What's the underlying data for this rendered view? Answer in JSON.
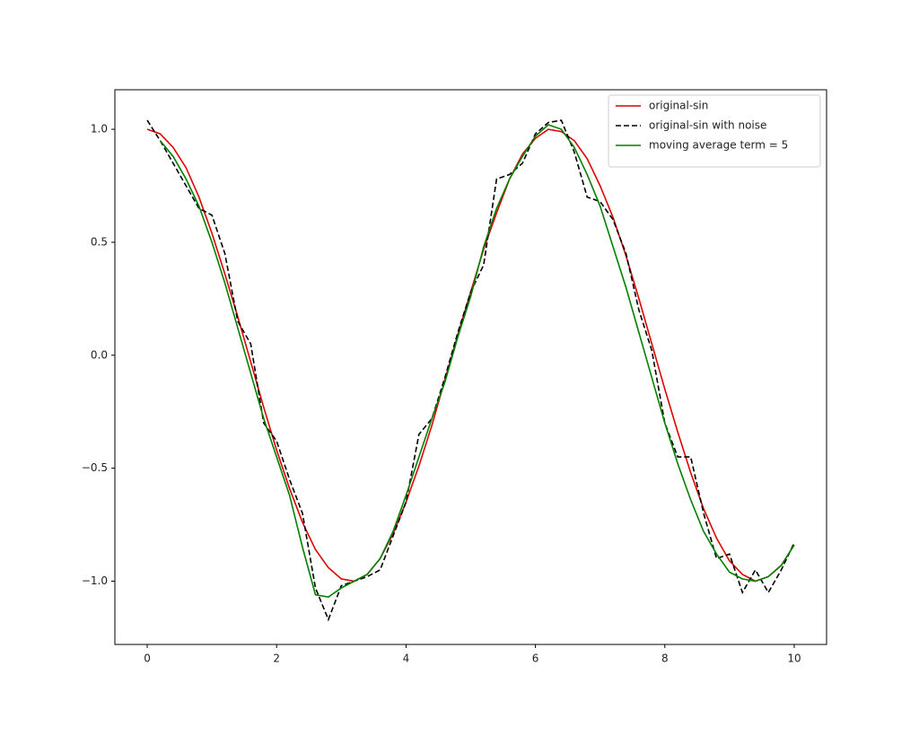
{
  "chart_data": {
    "type": "line",
    "series": [
      {
        "name": "original-sin",
        "color": "#e00000",
        "style": "solid",
        "x": [
          0,
          0.2,
          0.4,
          0.6,
          0.8,
          1,
          1.2,
          1.4,
          1.6,
          1.8,
          2,
          2.2,
          2.4,
          2.6,
          2.8,
          3,
          3.2,
          3.4,
          3.6,
          3.8,
          4,
          4.2,
          4.4,
          4.6,
          4.8,
          5,
          5.2,
          5.4,
          5.6,
          5.8,
          6,
          6.2,
          6.4,
          6.6,
          6.8,
          7,
          7.2,
          7.4,
          7.6,
          7.8,
          8,
          8.2,
          8.4,
          8.6,
          8.8,
          9,
          9.2,
          9.4,
          9.6,
          9.8,
          10
        ],
        "values": [
          1.0,
          0.98,
          0.92,
          0.83,
          0.7,
          0.54,
          0.36,
          0.17,
          -0.03,
          -0.23,
          -0.42,
          -0.59,
          -0.74,
          -0.86,
          -0.94,
          -0.99,
          -1.0,
          -0.97,
          -0.9,
          -0.79,
          -0.65,
          -0.49,
          -0.31,
          -0.11,
          0.09,
          0.28,
          0.47,
          0.63,
          0.78,
          0.89,
          0.96,
          1.0,
          0.99,
          0.95,
          0.87,
          0.75,
          0.61,
          0.44,
          0.25,
          0.05,
          -0.15,
          -0.34,
          -0.52,
          -0.68,
          -0.81,
          -0.91,
          -0.97,
          -1.0,
          -0.98,
          -0.93,
          -0.84
        ]
      },
      {
        "name": "original-sin with noise",
        "color": "#000000",
        "style": "dashed",
        "x": [
          0,
          0.2,
          0.4,
          0.6,
          0.8,
          1,
          1.2,
          1.4,
          1.6,
          1.8,
          2,
          2.2,
          2.4,
          2.6,
          2.8,
          3,
          3.2,
          3.4,
          3.6,
          3.8,
          4,
          4.2,
          4.4,
          4.6,
          4.8,
          5,
          5.2,
          5.4,
          5.6,
          5.8,
          6,
          6.2,
          6.4,
          6.6,
          6.8,
          7,
          7.2,
          7.4,
          7.6,
          7.8,
          8,
          8.2,
          8.4,
          8.6,
          8.8,
          9,
          9.2,
          9.4,
          9.6,
          9.8,
          10
        ],
        "values": [
          1.04,
          0.95,
          0.85,
          0.75,
          0.65,
          0.62,
          0.45,
          0.15,
          0.05,
          -0.3,
          -0.38,
          -0.55,
          -0.7,
          -1.03,
          -1.17,
          -1.02,
          -1.0,
          -0.98,
          -0.95,
          -0.8,
          -0.65,
          -0.35,
          -0.28,
          -0.1,
          0.1,
          0.28,
          0.4,
          0.78,
          0.8,
          0.85,
          0.98,
          1.03,
          1.04,
          0.9,
          0.7,
          0.68,
          0.6,
          0.45,
          0.2,
          0.02,
          -0.3,
          -0.45,
          -0.45,
          -0.7,
          -0.9,
          -0.88,
          -1.05,
          -0.95,
          -1.05,
          -0.95,
          -0.83
        ]
      },
      {
        "name": "moving average term = 5",
        "color": "#008000",
        "style": "solid",
        "x": [
          0.2,
          0.4,
          0.6,
          0.8,
          1,
          1.2,
          1.4,
          1.6,
          1.8,
          2,
          2.2,
          2.4,
          2.6,
          2.8,
          3,
          3.2,
          3.4,
          3.6,
          3.8,
          4,
          4.2,
          4.4,
          4.6,
          4.8,
          5,
          5.2,
          5.4,
          5.6,
          5.8,
          6,
          6.2,
          6.4,
          6.6,
          6.8,
          7,
          7.2,
          7.4,
          7.6,
          7.8,
          8,
          8.2,
          8.4,
          8.6,
          8.8,
          9,
          9.2,
          9.4,
          9.6,
          9.8,
          10
        ],
        "values": [
          0.95,
          0.88,
          0.78,
          0.66,
          0.5,
          0.32,
          0.12,
          -0.08,
          -0.28,
          -0.45,
          -0.62,
          -0.85,
          -1.06,
          -1.07,
          -1.03,
          -1.0,
          -0.97,
          -0.9,
          -0.78,
          -0.62,
          -0.45,
          -0.28,
          -0.12,
          0.08,
          0.26,
          0.48,
          0.65,
          0.78,
          0.88,
          0.97,
          1.02,
          1.0,
          0.92,
          0.8,
          0.66,
          0.48,
          0.3,
          0.1,
          -0.1,
          -0.3,
          -0.48,
          -0.64,
          -0.78,
          -0.88,
          -0.96,
          -0.99,
          -1.0,
          -0.98,
          -0.93,
          -0.84
        ]
      }
    ],
    "xlim": [
      -0.5,
      10.5
    ],
    "xticks": [
      0,
      2,
      4,
      6,
      8,
      10
    ],
    "ylim": [
      -1.28,
      1.175
    ],
    "yticks": [
      {
        "value": -1.0,
        "label": "−1.0"
      },
      {
        "value": -0.5,
        "label": "−0.5"
      },
      {
        "value": 0.0,
        "label": "0.0"
      },
      {
        "value": 0.5,
        "label": "0.5"
      },
      {
        "value": 1.0,
        "label": "1.0"
      }
    ],
    "grid": false,
    "legend": "upper right"
  }
}
